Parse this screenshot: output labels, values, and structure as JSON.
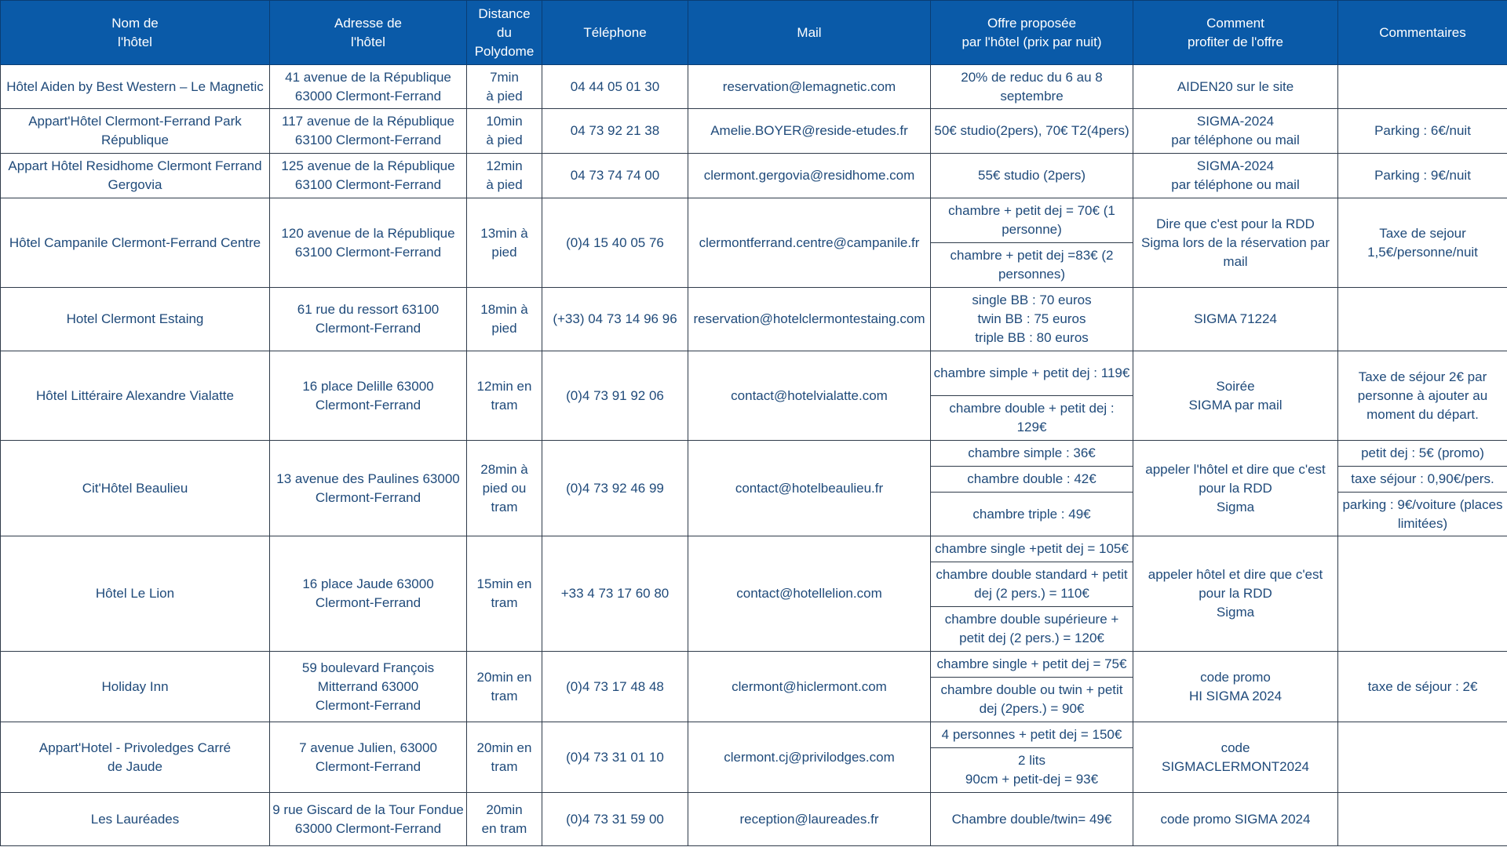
{
  "headers": [
    "Nom de\nl'hôtel",
    "Adresse de\nl'hôtel",
    "Distance du Polydome",
    "Téléphone",
    "Mail",
    "Offre proposée\npar l'hôtel (prix par nuit)",
    "Comment\nprofiter de l'offre",
    "Commentaires"
  ],
  "hotels": [
    {
      "name": "Hôtel Aiden by Best Western – Le Magnetic",
      "address": "41 avenue de la République\n63000 Clermont-Ferrand",
      "distance": "7min\nà pied",
      "phone": "04 44 05 01 30",
      "mail": "reservation@lemagnetic.com",
      "offers": [
        "20% de reduc du 6 au 8 septembre"
      ],
      "how": "AIDEN20 sur le site",
      "comments": [
        ""
      ]
    },
    {
      "name": "Appart'Hôtel Clermont-Ferrand Park République",
      "address": "117 avenue de la République\n63100 Clermont-Ferrand",
      "distance": "10min\nà pied",
      "phone": "04 73 92 21 38",
      "mail": "Amelie.BOYER@reside-etudes.fr",
      "offers": [
        "50€ studio(2pers), 70€ T2(4pers)"
      ],
      "how": "SIGMA-2024\npar téléphone ou mail",
      "comments": [
        "Parking : 6€/nuit"
      ]
    },
    {
      "name": "Appart Hôtel Residhome Clermont Ferrand Gergovia",
      "address": "125 avenue de la République\n63100 Clermont-Ferrand",
      "distance": "12min\nà pied",
      "phone": "04 73 74 74 00",
      "mail": "clermont.gergovia@residhome.com",
      "offers": [
        "55€ studio (2pers)"
      ],
      "how": "SIGMA-2024\npar téléphone ou mail",
      "comments": [
        "Parking : 9€/nuit"
      ]
    },
    {
      "name": "Hôtel Campanile Clermont-Ferrand Centre",
      "address": "120 avenue de la République\n63100 Clermont-Ferrand",
      "distance": "13min à pied",
      "phone": "(0)4 15 40 05 76",
      "mail": "clermontferrand.centre@campanile.fr",
      "offers": [
        "chambre + petit dej = 70€ (1 personne)",
        "chambre + petit dej =83€ (2 personnes)"
      ],
      "how": "Dire que c'est pour la RDD Sigma lors de la réservation par mail",
      "comments": [
        "Taxe de sejour\n1,5€/personne/nuit"
      ]
    },
    {
      "name": "Hotel Clermont Estaing",
      "address": "61 rue du ressort 63100\nClermont-Ferrand",
      "distance": "18min à pied",
      "phone": "(+33) 04 73 14 96 96",
      "mail": "reservation@hotelclermontestaing.com",
      "offers": [
        "single BB : 70 euros\ntwin BB : 75 euros\ntriple BB : 80 euros"
      ],
      "how": "SIGMA 71224",
      "comments": [
        ""
      ]
    },
    {
      "name": "Hôtel Littéraire Alexandre Vialatte",
      "address": "16 place Delille 63000\nClermont-Ferrand",
      "distance": "12min en tram",
      "phone": "(0)4 73 91 92 06",
      "mail": "contact@hotelvialatte.com",
      "offers": [
        "chambre simple + petit dej : 119€",
        "chambre double + petit dej : 129€"
      ],
      "how": "Soirée\nSIGMA par mail",
      "comments": [
        "Taxe de séjour 2€ par personne à ajouter au moment du départ."
      ]
    },
    {
      "name": "Cit'Hôtel Beaulieu",
      "address": "13 avenue des Paulines 63000 Clermont-Ferrand",
      "distance": "28min à pied ou tram",
      "phone": "(0)4 73 92 46 99",
      "mail": "contact@hotelbeaulieu.fr",
      "offers": [
        "chambre simple : 36€",
        "chambre double : 42€",
        "chambre triple : 49€"
      ],
      "how": "appeler l'hôtel et dire que c'est pour la RDD\nSigma",
      "comments": [
        "petit dej : 5€ (promo)",
        "taxe séjour : 0,90€/pers.",
        "parking : 9€/voiture (places limitées)"
      ]
    },
    {
      "name": "Hôtel Le Lion",
      "address": "16 place Jaude 63000\nClermont-Ferrand",
      "distance": "15min en tram",
      "phone": "+33 4 73 17 60 80",
      "mail": "contact@hotellelion.com",
      "offers": [
        "chambre single +petit dej = 105€",
        "chambre double standard + petit dej (2 pers.) = 110€",
        "chambre double supérieure + petit dej (2 pers.) = 120€"
      ],
      "how": "appeler hôtel et dire que c'est pour la RDD\nSigma",
      "comments": [
        ""
      ]
    },
    {
      "name": "Holiday Inn",
      "address": "59 boulevard François Mitterrand 63000\nClermont-Ferrand",
      "distance": "20min en tram",
      "phone": "(0)4 73 17 48 48",
      "mail": "clermont@hiclermont.com",
      "offers": [
        "chambre single + petit dej = 75€",
        "chambre double ou twin + petit dej (2pers.) = 90€"
      ],
      "how": "code promo\nHI SIGMA 2024",
      "comments": [
        "taxe de séjour : 2€"
      ]
    },
    {
      "name": "Appart'Hotel - Privoledges Carré\nde Jaude",
      "address": "7 avenue Julien, 63000\nClermont-Ferrand",
      "distance": "20min en tram",
      "phone": "(0)4 73 31 01 10",
      "mail": "clermont.cj@privilodges.com",
      "offers": [
        "4 personnes + petit dej = 150€",
        "2 lits\n90cm + petit-dej  = 93€"
      ],
      "how": "code\nSIGMACLERMONT2024",
      "comments": [
        ""
      ]
    },
    {
      "name": "Les Lauréades",
      "address": "9 rue Giscard de la Tour Fondue 63000 Clermont-Ferrand",
      "distance": "20min\nen tram",
      "phone": "(0)4 73 31 59 00",
      "mail": "reception@laureades.fr",
      "offers": [
        "Chambre double/twin= 49€"
      ],
      "how": "code promo SIGMA 2024",
      "comments": [
        ""
      ]
    }
  ]
}
